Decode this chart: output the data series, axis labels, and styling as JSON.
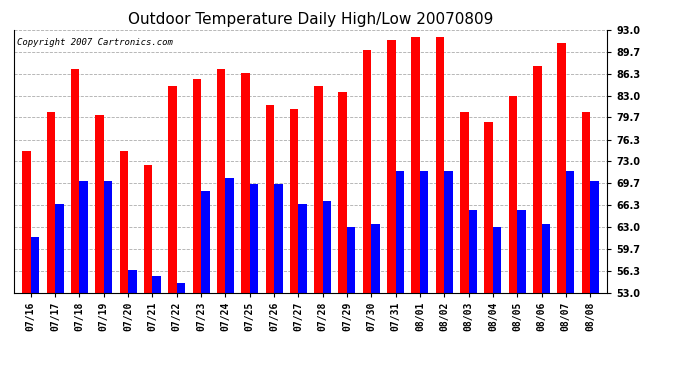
{
  "title": "Outdoor Temperature Daily High/Low 20070809",
  "copyright": "Copyright 2007 Cartronics.com",
  "dates": [
    "07/16",
    "07/17",
    "07/18",
    "07/19",
    "07/20",
    "07/21",
    "07/22",
    "07/23",
    "07/24",
    "07/25",
    "07/26",
    "07/27",
    "07/28",
    "07/29",
    "07/30",
    "07/31",
    "08/01",
    "08/02",
    "08/03",
    "08/04",
    "08/05",
    "08/06",
    "08/07",
    "08/08"
  ],
  "highs": [
    74.5,
    80.5,
    87.0,
    80.0,
    74.5,
    72.5,
    84.5,
    85.5,
    87.0,
    86.5,
    81.5,
    81.0,
    84.5,
    83.5,
    90.0,
    91.5,
    92.0,
    92.0,
    80.5,
    79.0,
    83.0,
    87.5,
    91.0,
    80.5
  ],
  "lows": [
    61.5,
    66.5,
    70.0,
    70.0,
    56.5,
    55.5,
    54.5,
    68.5,
    70.5,
    69.5,
    69.5,
    66.5,
    67.0,
    63.0,
    63.5,
    71.5,
    71.5,
    71.5,
    65.5,
    63.0,
    65.5,
    63.5,
    71.5,
    70.0
  ],
  "high_color": "#FF0000",
  "low_color": "#0000FF",
  "ylim_min": 53.0,
  "ylim_max": 93.0,
  "yticks": [
    53.0,
    56.3,
    59.7,
    63.0,
    66.3,
    69.7,
    73.0,
    76.3,
    79.7,
    83.0,
    86.3,
    89.7,
    93.0
  ],
  "bg_color": "#FFFFFF",
  "grid_color": "#888888",
  "title_fontsize": 11,
  "tick_fontsize": 7,
  "copyright_fontsize": 6.5
}
